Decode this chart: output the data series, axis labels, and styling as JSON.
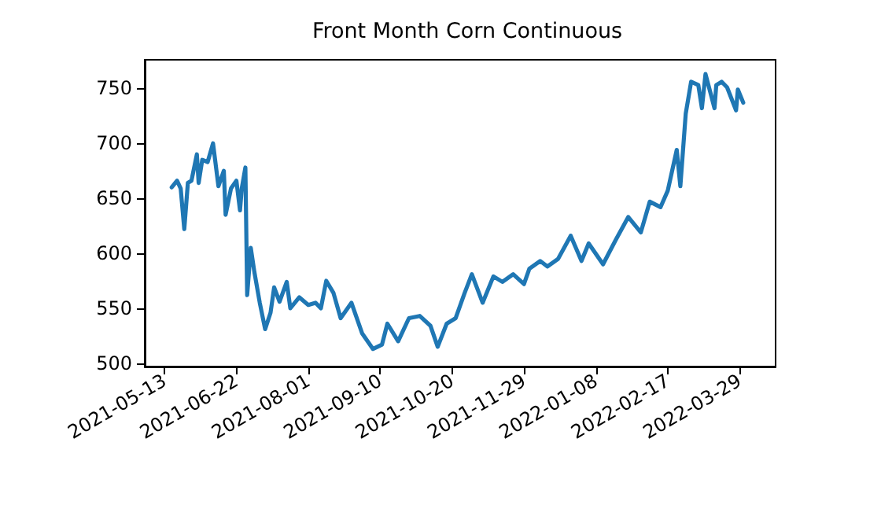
{
  "chart_data": {
    "type": "line",
    "title": "Front Month Corn Continuous",
    "x": [
      "2021-05-17",
      "2021-05-20",
      "2021-05-22",
      "2021-05-24",
      "2021-05-26",
      "2021-05-28",
      "2021-05-31",
      "2021-06-01",
      "2021-06-03",
      "2021-06-06",
      "2021-06-09",
      "2021-06-12",
      "2021-06-15",
      "2021-06-16",
      "2021-06-19",
      "2021-06-22",
      "2021-06-24",
      "2021-06-25",
      "2021-06-27",
      "2021-06-28",
      "2021-06-30",
      "2021-07-02",
      "2021-07-05",
      "2021-07-08",
      "2021-07-11",
      "2021-07-13",
      "2021-07-16",
      "2021-07-20",
      "2021-07-22",
      "2021-07-27",
      "2021-08-01",
      "2021-08-05",
      "2021-08-08",
      "2021-08-11",
      "2021-08-15",
      "2021-08-19",
      "2021-08-25",
      "2021-08-31",
      "2021-09-06",
      "2021-09-11",
      "2021-09-14",
      "2021-09-20",
      "2021-09-26",
      "2021-10-02",
      "2021-10-08",
      "2021-10-12",
      "2021-10-17",
      "2021-10-22",
      "2021-10-27",
      "2021-10-31",
      "2021-11-06",
      "2021-11-12",
      "2021-11-17",
      "2021-11-23",
      "2021-11-29",
      "2021-12-02",
      "2021-12-08",
      "2021-12-12",
      "2021-12-18",
      "2021-12-25",
      "2021-12-31",
      "2022-01-04",
      "2022-01-12",
      "2022-01-19",
      "2022-01-26",
      "2022-02-02",
      "2022-02-07",
      "2022-02-13",
      "2022-02-17",
      "2022-02-22",
      "2022-02-24",
      "2022-02-27",
      "2022-03-02",
      "2022-03-06",
      "2022-03-08",
      "2022-03-10",
      "2022-03-15",
      "2022-03-16",
      "2022-03-19",
      "2022-03-22",
      "2022-03-27",
      "2022-03-28",
      "2022-03-31"
    ],
    "series": [
      {
        "color": "#1f77b4",
        "values": [
          660,
          666,
          659,
          622,
          664,
          666,
          690,
          664,
          685,
          683,
          700,
          661,
          675,
          635,
          659,
          666,
          639,
          659,
          678,
          562,
          605,
          583,
          555,
          531,
          546,
          569,
          556,
          574,
          550,
          560,
          553,
          555,
          550,
          575,
          564,
          541,
          555,
          527,
          513,
          517,
          536,
          520,
          541,
          543,
          534,
          515,
          536,
          541,
          564,
          581,
          555,
          579,
          574,
          581,
          572,
          586,
          593,
          588,
          595,
          616,
          593,
          609,
          590,
          612,
          633,
          619,
          647,
          642,
          657,
          694,
          661,
          727,
          756,
          753,
          732,
          763,
          732,
          753,
          756,
          751,
          730,
          749,
          737
        ]
      }
    ],
    "xlim": [
      "2021-05-02",
      "2022-04-18"
    ],
    "ylim": [
      497,
      776
    ],
    "xticks": [
      "2021-05-13",
      "2021-06-22",
      "2021-08-01",
      "2021-09-10",
      "2021-10-20",
      "2021-11-29",
      "2022-01-08",
      "2022-02-17",
      "2022-03-29"
    ],
    "yticks": [
      500,
      550,
      600,
      650,
      700,
      750
    ],
    "grid": false,
    "marker": "none",
    "line_style": "solid"
  }
}
